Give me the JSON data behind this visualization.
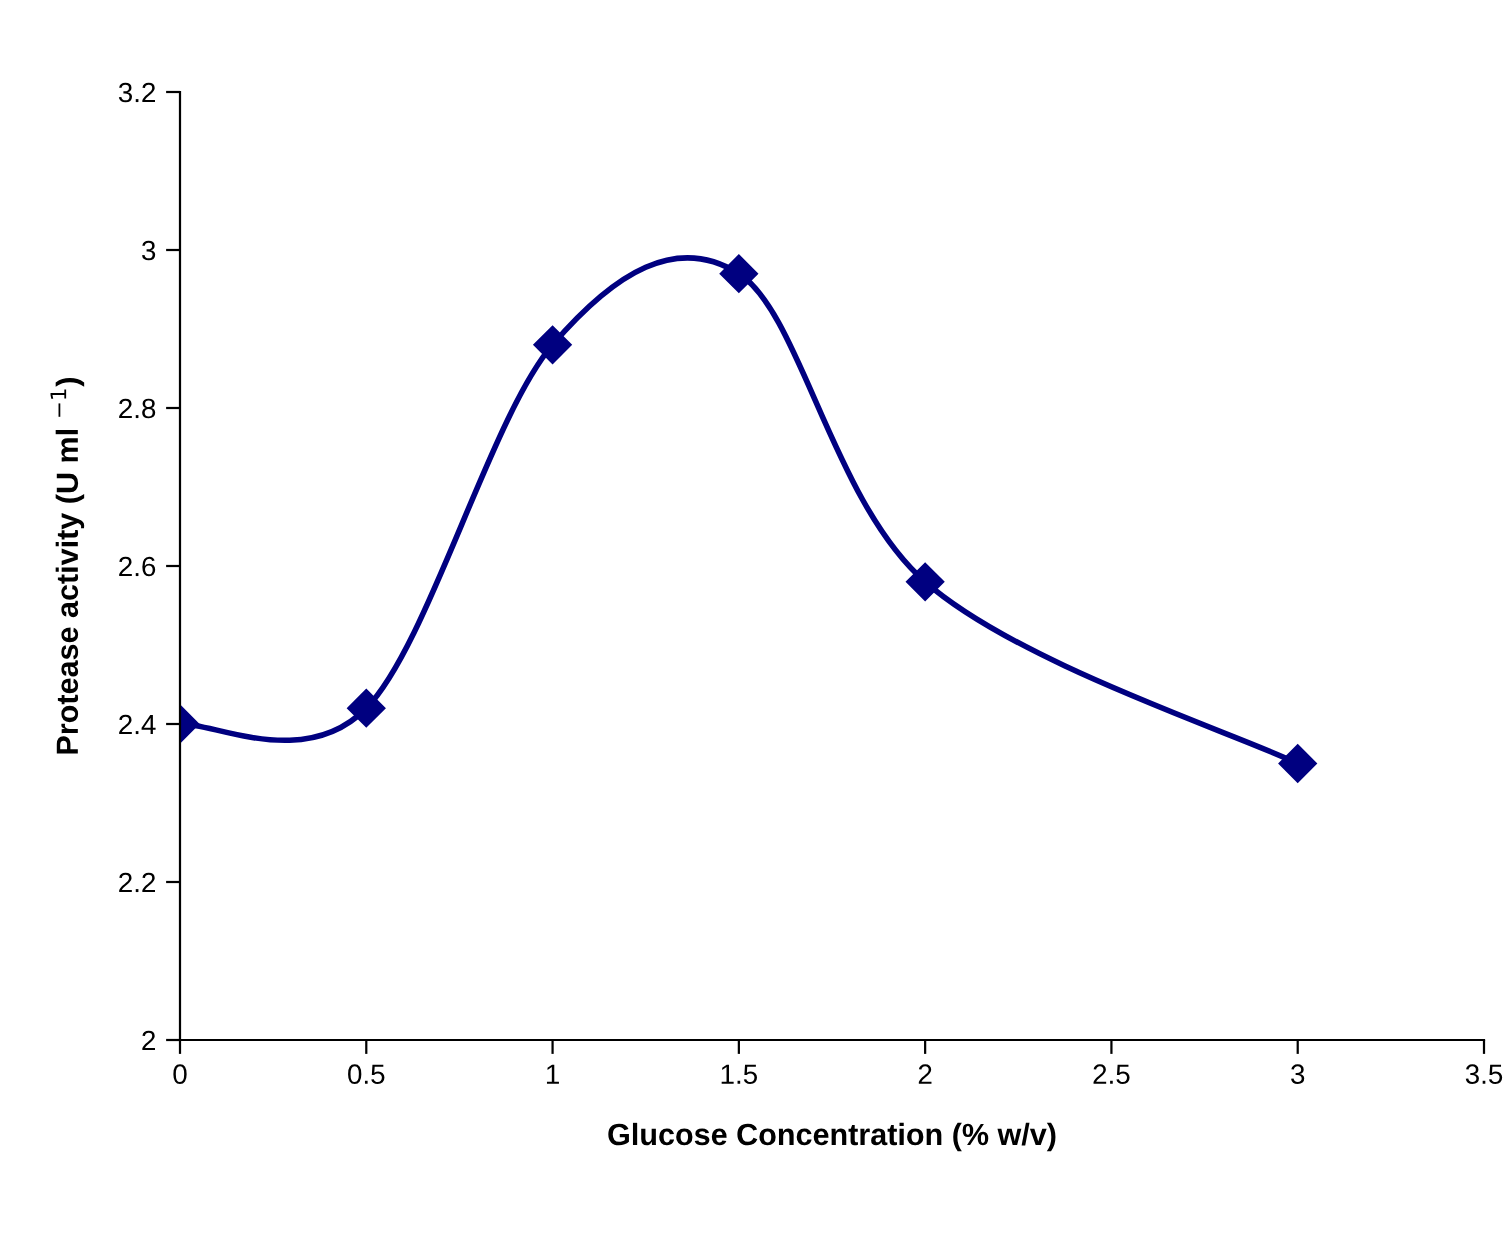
{
  "chart_data": {
    "type": "line",
    "xlabel": "Glucose Concentration (% w/v)",
    "ylabel": "Protease activity (U ml $^{−1}$)",
    "x": [
      0,
      0.5,
      1,
      1.5,
      2,
      3
    ],
    "series": [
      {
        "color": "#000080",
        "values": [
          2.4,
          2.42,
          2.88,
          2.97,
          2.58,
          2.35
        ]
      }
    ],
    "marker": "diamond",
    "line_style": "solid",
    "grid": false,
    "legend": false,
    "xlim": [
      0,
      3.5
    ],
    "xticks": [
      0,
      0.5,
      1,
      1.5,
      2,
      2.5,
      3,
      3.5
    ],
    "ylim": [
      2,
      3.2
    ],
    "yticks": [
      2,
      2.2,
      2.4,
      2.6,
      2.8,
      3,
      3.2
    ]
  }
}
